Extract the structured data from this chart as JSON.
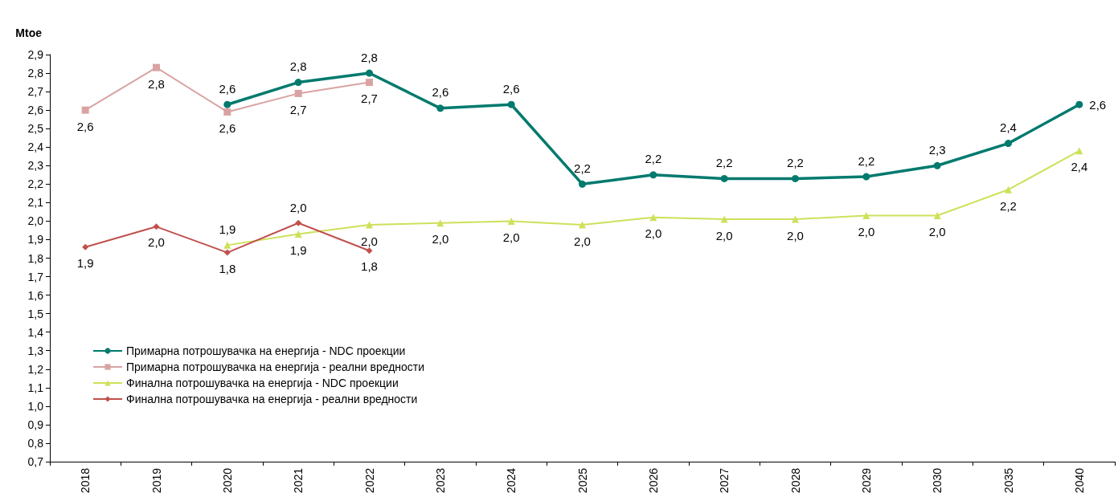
{
  "chart_data": {
    "type": "line",
    "ylabel": "Mtoe",
    "categories": [
      "2018",
      "2019",
      "2020",
      "2021",
      "2022",
      "2023",
      "2024",
      "2025",
      "2026",
      "2027",
      "2028",
      "2029",
      "2030",
      "2035",
      "2040"
    ],
    "series": [
      {
        "name": "Примарна потрошувачка на енергија - NDC проекции",
        "color": "#007a6e",
        "marker": "circle",
        "values": [
          null,
          null,
          2.63,
          2.75,
          2.8,
          2.61,
          2.63,
          2.2,
          2.25,
          2.23,
          2.23,
          2.24,
          2.3,
          2.42,
          2.63
        ],
        "value_labels": [
          null,
          null,
          "2,6",
          "2,8",
          "2,8",
          "2,6",
          "2,6",
          "2,2",
          "2,2",
          "2,2",
          "2,2",
          "2,2",
          "2,3",
          "2,4",
          "2,6"
        ]
      },
      {
        "name": "Примарна потрошувачка на енергија - реални вредности",
        "color": "#d9a3a3",
        "marker": "square",
        "values": [
          2.6,
          2.83,
          2.59,
          2.69,
          2.75,
          null,
          null,
          null,
          null,
          null,
          null,
          null,
          null,
          null,
          null
        ],
        "value_labels": [
          "2,6",
          "2,8",
          "2,6",
          "2,7",
          "2,7",
          null,
          null,
          null,
          null,
          null,
          null,
          null,
          null,
          null,
          null
        ]
      },
      {
        "name": "Финална потрошувачка на енергија - NDC проекции",
        "color": "#cfe05a",
        "marker": "triangle",
        "values": [
          null,
          null,
          1.87,
          1.93,
          1.98,
          1.99,
          2.0,
          1.98,
          2.02,
          2.01,
          2.01,
          2.03,
          2.03,
          2.17,
          2.38
        ],
        "value_labels": [
          null,
          null,
          "1,9",
          "1,9",
          "2,0",
          "2,0",
          "2,0",
          "2,0",
          "2,0",
          "2,0",
          "2,0",
          "2,0",
          "2,0",
          "2,2",
          "2,4"
        ]
      },
      {
        "name": "Финална потрошувачка на енергија - реални вредности",
        "color": "#c0504d",
        "marker": "diamond",
        "values": [
          1.86,
          1.97,
          1.83,
          1.99,
          1.84,
          null,
          null,
          null,
          null,
          null,
          null,
          null,
          null,
          null,
          null
        ],
        "value_labels": [
          "1,9",
          "2,0",
          "1,8",
          "2,0",
          "1,8",
          null,
          null,
          null,
          null,
          null,
          null,
          null,
          null,
          null,
          null
        ]
      }
    ],
    "ylim": [
      0.7,
      2.9
    ],
    "yticks": [
      {
        "value": 0.7,
        "label": "0,7"
      },
      {
        "value": 0.8,
        "label": "0,8"
      },
      {
        "value": 0.9,
        "label": "0,9"
      },
      {
        "value": 1.0,
        "label": "1,0"
      },
      {
        "value": 1.1,
        "label": "1,1"
      },
      {
        "value": 1.2,
        "label": "1,2"
      },
      {
        "value": 1.3,
        "label": "1,3"
      },
      {
        "value": 1.4,
        "label": "1,4"
      },
      {
        "value": 1.5,
        "label": "1,5"
      },
      {
        "value": 1.6,
        "label": "1,6"
      },
      {
        "value": 1.7,
        "label": "1,7"
      },
      {
        "value": 1.8,
        "label": "1,8"
      },
      {
        "value": 1.9,
        "label": "1,9"
      },
      {
        "value": 2.0,
        "label": "2,0"
      },
      {
        "value": 2.1,
        "label": "2,1"
      },
      {
        "value": 2.2,
        "label": "2,2"
      },
      {
        "value": 2.3,
        "label": "2,3"
      },
      {
        "value": 2.4,
        "label": "2,4"
      },
      {
        "value": 2.5,
        "label": "2,5"
      },
      {
        "value": 2.6,
        "label": "2,6"
      },
      {
        "value": 2.7,
        "label": "2,7"
      },
      {
        "value": 2.8,
        "label": "2,8"
      },
      {
        "value": 2.9,
        "label": "2,9"
      }
    ],
    "grid": false,
    "legend": "bottom left",
    "line_style": "solid"
  }
}
